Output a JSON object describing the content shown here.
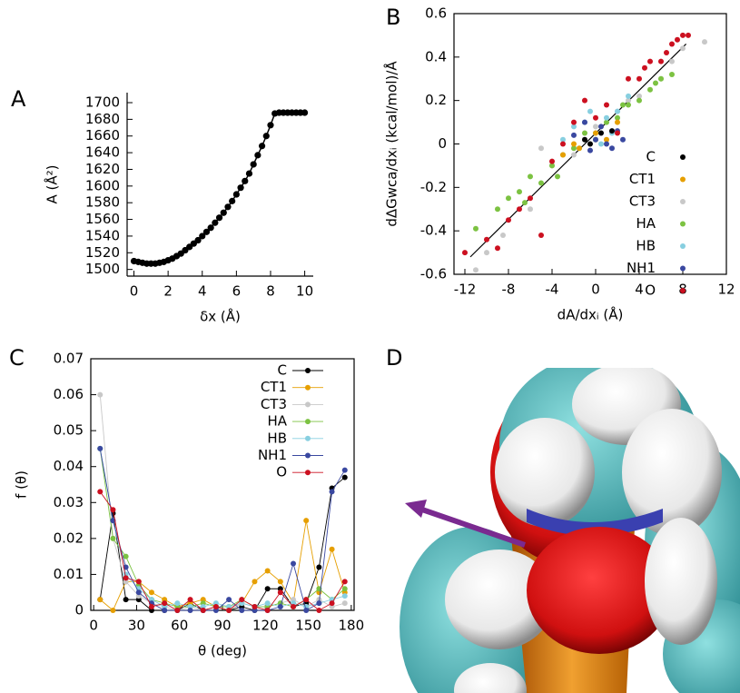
{
  "chart_data": [
    {
      "type": "line",
      "label": "A",
      "xlabel": "δx (Å)",
      "ylabel": "A (Å²)",
      "xlim": [
        -0.4,
        10.5
      ],
      "xticks": [
        0,
        2,
        4,
        6,
        8,
        10
      ],
      "ylim": [
        1492,
        1712
      ],
      "yticks": [
        1500,
        1520,
        1540,
        1560,
        1580,
        1600,
        1620,
        1640,
        1660,
        1680,
        1700
      ],
      "frame": "axes",
      "series": [
        {
          "color": "#000000",
          "x": [
            0,
            0.25,
            0.5,
            0.75,
            1,
            1.25,
            1.5,
            1.75,
            2,
            2.25,
            2.5,
            2.75,
            3,
            3.25,
            3.5,
            3.75,
            4,
            4.25,
            4.5,
            4.75,
            5,
            5.25,
            5.5,
            5.75,
            6,
            6.25,
            6.5,
            6.75,
            7,
            7.25,
            7.5,
            7.75,
            8,
            8.25,
            8.5,
            8.75,
            9,
            9.25,
            9.5,
            9.75,
            10
          ],
          "values": [
            1510,
            1509,
            1508,
            1507,
            1507,
            1507,
            1508,
            1509,
            1511,
            1513,
            1516,
            1519,
            1523,
            1527,
            1531,
            1535,
            1540,
            1545,
            1550,
            1556,
            1562,
            1568,
            1575,
            1582,
            1590,
            1598,
            1606,
            1615,
            1626,
            1637,
            1648,
            1660,
            1673,
            1687,
            1688,
            1688,
            1688,
            1688,
            1688,
            1688,
            1688
          ]
        }
      ]
    },
    {
      "type": "scatter",
      "label": "B",
      "xlabel": "dA/dxᵢ (Å)",
      "ylabel": "dΔGwca/dxᵢ (kcal/mol)/Å",
      "xlim": [
        -13,
        12
      ],
      "xticks": [
        -12,
        -8,
        -4,
        0,
        4,
        8,
        12
      ],
      "ylim": [
        -0.6,
        0.6
      ],
      "yticks": [
        -0.6,
        -0.4,
        -0.2,
        0,
        0.2,
        0.4,
        0.6
      ],
      "frame": "box",
      "legend": "right",
      "fit_line": {
        "x": [
          -11.5,
          8.3
        ],
        "values": [
          -0.52,
          0.46
        ]
      },
      "series": [
        {
          "name": "CT3",
          "color": "#c8c8c8",
          "x": [
            -10,
            -8.5,
            -6,
            -4,
            -2,
            0,
            2,
            4,
            6,
            8,
            10,
            -11,
            3,
            7,
            -5
          ],
          "values": [
            -0.5,
            -0.42,
            -0.3,
            -0.1,
            -0.05,
            0.08,
            0.15,
            0.22,
            0.3,
            0.44,
            0.47,
            -0.58,
            0.2,
            0.38,
            -0.02
          ]
        },
        {
          "name": "HA",
          "color": "#7cc242",
          "x": [
            -11,
            -9,
            -8,
            -7,
            -6,
            -5,
            -4,
            -3,
            -2,
            -1,
            0,
            1,
            2,
            3,
            4,
            5,
            6,
            7,
            -6.5,
            -3.5,
            2.5,
            5.5
          ],
          "values": [
            -0.39,
            -0.3,
            -0.25,
            -0.22,
            -0.15,
            -0.18,
            -0.1,
            -0.05,
            -0.02,
            0.05,
            0.02,
            0.1,
            0.12,
            0.18,
            0.2,
            0.25,
            0.3,
            0.32,
            -0.27,
            -0.15,
            0.18,
            0.28
          ]
        },
        {
          "name": "HB",
          "color": "#87cfe0",
          "x": [
            -3,
            -2,
            -1,
            0,
            1,
            2,
            -1.5,
            0.5,
            1.5,
            3,
            -0.5
          ],
          "values": [
            0.02,
            0.08,
            0.1,
            0.05,
            0.12,
            0.15,
            -0.02,
            0.0,
            0.05,
            0.22,
            0.15
          ]
        },
        {
          "name": "CT1",
          "color": "#e69f00",
          "x": [
            -2,
            -1.5,
            0,
            1,
            -3,
            2
          ],
          "values": [
            0.0,
            -0.02,
            0.05,
            0.02,
            -0.05,
            0.1
          ]
        },
        {
          "name": "NH1",
          "color": "#3a48a0",
          "x": [
            -2,
            -1,
            0,
            1,
            2,
            0.5,
            -0.5,
            1.5,
            2.5
          ],
          "values": [
            0.04,
            0.1,
            0.02,
            0.0,
            0.06,
            0.08,
            -0.03,
            -0.02,
            0.02
          ]
        },
        {
          "name": "C",
          "color": "#000000",
          "x": [
            -1,
            0.5,
            1.5,
            -0.5
          ],
          "values": [
            0.02,
            0.05,
            0.06,
            0.0
          ]
        },
        {
          "name": "O",
          "color": "#cc1020",
          "x": [
            -12,
            -10,
            -9,
            -8,
            -6,
            -4,
            -3,
            -2,
            -1,
            0,
            1,
            2,
            3,
            4,
            5,
            6,
            7,
            7.5,
            8,
            8.5,
            -5,
            -7,
            4.5,
            6.5
          ],
          "values": [
            -0.5,
            -0.44,
            -0.48,
            -0.35,
            -0.25,
            -0.08,
            0.0,
            0.1,
            0.2,
            0.12,
            0.18,
            0.05,
            0.3,
            0.3,
            0.38,
            0.38,
            0.46,
            0.48,
            0.5,
            0.5,
            -0.42,
            -0.3,
            0.35,
            0.42
          ]
        }
      ]
    },
    {
      "type": "line",
      "label": "C",
      "xlabel": "θ (deg)",
      "ylabel": "f (θ)",
      "xlim": [
        -2,
        182
      ],
      "xticks": [
        0,
        30,
        60,
        90,
        120,
        150,
        180
      ],
      "ylim": [
        0,
        0.07
      ],
      "yticks": [
        0,
        0.01,
        0.02,
        0.03,
        0.04,
        0.05,
        0.06,
        0.07
      ],
      "frame": "box",
      "legend": "upper right",
      "x": [
        4.5,
        13.5,
        22.5,
        31.5,
        40.5,
        49.5,
        58.5,
        67.5,
        76.5,
        85.5,
        94.5,
        103.5,
        112.5,
        121.5,
        130.5,
        139.5,
        148.5,
        157.5,
        166.5,
        175.5
      ],
      "series": [
        {
          "name": "C",
          "color": "#000000",
          "values": [
            0.003,
            0.027,
            0.003,
            0.003,
            0,
            0,
            0,
            0.002,
            0,
            0.001,
            0,
            0.001,
            0,
            0.006,
            0.006,
            0.001,
            0.002,
            0.012,
            0.034,
            0.037
          ]
        },
        {
          "name": "CT1",
          "color": "#e69f00",
          "values": [
            0.003,
            0,
            0.008,
            0.008,
            0.005,
            0.003,
            0.001,
            0.002,
            0.003,
            0.001,
            0,
            0.002,
            0.008,
            0.011,
            0.008,
            0.002,
            0.025,
            0.005,
            0.017,
            0.005
          ]
        },
        {
          "name": "CT3",
          "color": "#c8c8c8",
          "values": [
            0.06,
            0.02,
            0.008,
            0.004,
            0.002,
            0.001,
            0,
            0.001,
            0,
            0.001,
            0,
            0.002,
            0.001,
            0.001,
            0.002,
            0.003,
            0.001,
            0.003,
            0.001,
            0.002
          ]
        },
        {
          "name": "HA",
          "color": "#7cc242",
          "values": [
            0.045,
            0.02,
            0.015,
            0.007,
            0.003,
            0.002,
            0.001,
            0.001,
            0.002,
            0.001,
            0.001,
            0.003,
            0.001,
            0.001,
            0.002,
            0.001,
            0.003,
            0.006,
            0.003,
            0.006
          ]
        },
        {
          "name": "HB",
          "color": "#87cfe0",
          "values": [
            0.045,
            0.025,
            0.01,
            0.006,
            0.003,
            0.001,
            0.002,
            0.001,
            0.001,
            0.002,
            0.001,
            0.002,
            0.001,
            0.002,
            0.001,
            0.002,
            0.001,
            0.002,
            0.003,
            0.004
          ]
        },
        {
          "name": "NH1",
          "color": "#3a48a0",
          "values": [
            0.045,
            0.025,
            0.012,
            0.005,
            0.002,
            0,
            0,
            0,
            0,
            0,
            0.003,
            0,
            0,
            0,
            0.001,
            0.013,
            0,
            0.002,
            0.033,
            0.039
          ]
        },
        {
          "name": "O",
          "color": "#cc1020",
          "values": [
            0.033,
            0.028,
            0.009,
            0.008,
            0.001,
            0.002,
            0,
            0.003,
            0,
            0.001,
            0,
            0.003,
            0.001,
            0,
            0.005,
            0.001,
            0.003,
            0,
            0.002,
            0.008
          ]
        }
      ]
    }
  ],
  "image_panel": {
    "label": "D"
  }
}
